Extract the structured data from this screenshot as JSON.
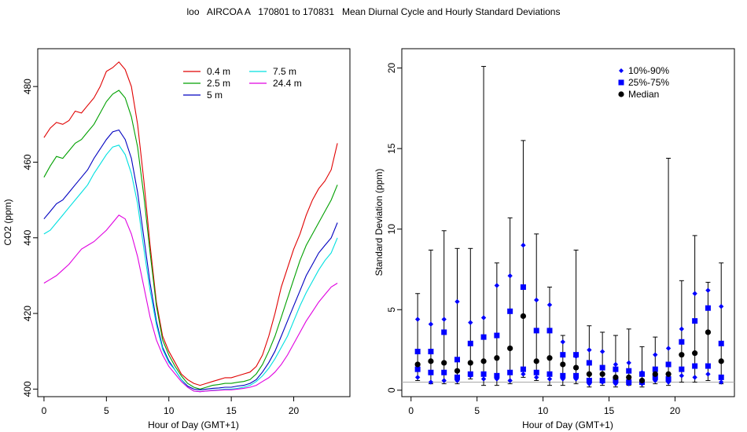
{
  "title": "loo   AIRCOA A   170801 to 170831   Mean Diurnal Cycle and Hourly Standard Deviations",
  "chart_data": [
    {
      "type": "line",
      "xlabel": "Hour of Day (GMT+1)",
      "ylabel": "CO2 (ppm)",
      "xlim": [
        -0.5,
        24.5
      ],
      "ylim": [
        398,
        490
      ],
      "xticks": [
        0,
        5,
        10,
        15,
        20
      ],
      "yticks": [
        400,
        420,
        440,
        460,
        480
      ],
      "grid": false,
      "legend_position": "top-center",
      "series": [
        {
          "name": "0.4 m",
          "color": "#e00000",
          "x": [
            0,
            0.5,
            1,
            1.5,
            2,
            2.5,
            3,
            3.5,
            4,
            4.5,
            5,
            5.5,
            6,
            6.5,
            7,
            7.5,
            8,
            8.5,
            9,
            9.5,
            10,
            10.5,
            11,
            11.5,
            12,
            12.5,
            13,
            13.5,
            14,
            14.5,
            15,
            15.5,
            16,
            16.5,
            17,
            17.5,
            18,
            18.5,
            19,
            19.5,
            20,
            20.5,
            21,
            21.5,
            22,
            22.5,
            23,
            23.5
          ],
          "y": [
            466.5,
            469,
            470.5,
            470,
            471,
            473.5,
            473,
            475,
            477,
            480,
            484,
            485,
            486.5,
            484.5,
            480,
            470,
            455,
            438,
            423,
            414,
            410,
            407,
            404,
            402.5,
            401.5,
            401,
            401.5,
            402,
            402.5,
            403,
            403,
            403.5,
            404,
            404.5,
            406,
            409,
            414,
            420,
            427,
            432,
            437,
            441,
            446,
            450,
            453,
            455,
            458,
            465
          ]
        },
        {
          "name": "2.5 m",
          "color": "#00a000",
          "x": [
            0,
            0.5,
            1,
            1.5,
            2,
            2.5,
            3,
            3.5,
            4,
            4.5,
            5,
            5.5,
            6,
            6.5,
            7,
            7.5,
            8,
            8.5,
            9,
            9.5,
            10,
            10.5,
            11,
            11.5,
            12,
            12.5,
            13,
            13.5,
            14,
            14.5,
            15,
            15.5,
            16,
            16.5,
            17,
            17.5,
            18,
            18.5,
            19,
            19.5,
            20,
            20.5,
            21,
            21.5,
            22,
            22.5,
            23,
            23.5
          ],
          "y": [
            456,
            459,
            461.5,
            461,
            463,
            465,
            466,
            468,
            470,
            473,
            476,
            478,
            479,
            477,
            472,
            464,
            451,
            436,
            422,
            413,
            409,
            406,
            403.5,
            401.5,
            400.5,
            400,
            400.5,
            401,
            401.2,
            401.5,
            401.5,
            401.8,
            402,
            402.5,
            404,
            406.5,
            410,
            414,
            419,
            424,
            429,
            434,
            438,
            441,
            444,
            447,
            450,
            454
          ]
        },
        {
          "name": "5 m",
          "color": "#0000c0",
          "x": [
            0,
            0.5,
            1,
            1.5,
            2,
            2.5,
            3,
            3.5,
            4,
            4.5,
            5,
            5.5,
            6,
            6.5,
            7,
            7.5,
            8,
            8.5,
            9,
            9.5,
            10,
            10.5,
            11,
            11.5,
            12,
            12.5,
            13,
            13.5,
            14,
            14.5,
            15,
            15.5,
            16,
            16.5,
            17,
            17.5,
            18,
            18.5,
            19,
            19.5,
            20,
            20.5,
            21,
            21.5,
            22,
            22.5,
            23,
            23.5
          ],
          "y": [
            445,
            447,
            449,
            450,
            452,
            454,
            456,
            458,
            461,
            463.5,
            466,
            468,
            468.5,
            466,
            461,
            452,
            440,
            428,
            418,
            411,
            407.5,
            405,
            402.5,
            400.8,
            400,
            399.8,
            400,
            400.2,
            400.3,
            400.5,
            400.5,
            400.8,
            401,
            401.5,
            402.5,
            404.5,
            407,
            410,
            414,
            418,
            422,
            426,
            430,
            433,
            436,
            438,
            440,
            444
          ]
        },
        {
          "name": "7.5 m",
          "color": "#00e0e0",
          "x": [
            0,
            0.5,
            1,
            1.5,
            2,
            2.5,
            3,
            3.5,
            4,
            4.5,
            5,
            5.5,
            6,
            6.5,
            7,
            7.5,
            8,
            8.5,
            9,
            9.5,
            10,
            10.5,
            11,
            11.5,
            12,
            12.5,
            13,
            13.5,
            14,
            14.5,
            15,
            15.5,
            16,
            16.5,
            17,
            17.5,
            18,
            18.5,
            19,
            19.5,
            20,
            20.5,
            21,
            21.5,
            22,
            22.5,
            23,
            23.5
          ],
          "y": [
            441,
            442,
            444,
            446,
            448,
            450,
            452,
            454,
            457,
            459.5,
            462,
            464,
            464.5,
            462,
            457,
            449,
            437,
            426,
            417,
            410.5,
            407,
            405,
            402.5,
            400.5,
            399.5,
            399.3,
            399.5,
            399.7,
            399.8,
            400,
            400,
            400.2,
            400.5,
            401,
            402,
            403.5,
            405.5,
            408,
            411,
            414,
            418,
            422,
            425.5,
            428.5,
            431.5,
            434,
            436,
            440
          ]
        },
        {
          "name": "24.4 m",
          "color": "#e000e0",
          "x": [
            0,
            0.5,
            1,
            1.5,
            2,
            2.5,
            3,
            3.5,
            4,
            4.5,
            5,
            5.5,
            6,
            6.5,
            7,
            7.5,
            8,
            8.5,
            9,
            9.5,
            10,
            10.5,
            11,
            11.5,
            12,
            12.5,
            13,
            13.5,
            14,
            14.5,
            15,
            15.5,
            16,
            16.5,
            17,
            17.5,
            18,
            18.5,
            19,
            19.5,
            20,
            20.5,
            21,
            21.5,
            22,
            22.5,
            23,
            23.5
          ],
          "y": [
            428,
            429,
            430,
            431.5,
            433,
            435,
            437,
            438,
            439,
            440.5,
            442,
            444,
            446,
            445,
            441,
            435,
            427,
            419,
            413,
            409,
            406,
            404,
            402,
            400.5,
            399.5,
            399.3,
            399.5,
            399.6,
            399.7,
            399.8,
            399.8,
            400,
            400.2,
            400.5,
            401,
            402,
            403,
            404.5,
            406.5,
            409,
            412,
            415,
            418,
            420.5,
            423,
            425,
            427,
            428
          ]
        }
      ]
    },
    {
      "type": "scatter",
      "xlabel": "Hour of Day (GMT+1)",
      "ylabel": "Standard Deviation (ppm)",
      "xlim": [
        -0.7,
        24.5
      ],
      "ylim": [
        -0.4,
        21.2
      ],
      "xticks": [
        0,
        5,
        10,
        15,
        20
      ],
      "yticks": [
        0,
        5,
        10,
        15,
        20
      ],
      "grid": false,
      "legend_position": "top-right",
      "reference_line": 0.5,
      "legend": [
        {
          "label": "10%-90%",
          "marker": "diamond",
          "color": "#0000ff"
        },
        {
          "label": "25%-75%",
          "marker": "square",
          "color": "#0000ff"
        },
        {
          "label": "Median",
          "marker": "circle",
          "color": "#000000"
        }
      ],
      "hours": [
        0.5,
        1.5,
        2.5,
        3.5,
        4.5,
        5.5,
        6.5,
        7.5,
        8.5,
        9.5,
        10.5,
        11.5,
        12.5,
        13.5,
        14.5,
        15.5,
        16.5,
        17.5,
        18.5,
        19.5,
        20.5,
        21.5,
        22.5,
        23.5
      ],
      "max": [
        6.0,
        8.7,
        9.9,
        8.8,
        8.8,
        20.1,
        7.9,
        10.7,
        15.5,
        9.7,
        6.4,
        3.4,
        8.7,
        4.0,
        3.6,
        3.4,
        3.8,
        2.7,
        3.3,
        14.4,
        6.8,
        9.6,
        6.7,
        7.9
      ],
      "p90": [
        4.4,
        4.1,
        4.4,
        5.5,
        4.2,
        4.5,
        6.5,
        7.1,
        9.0,
        5.6,
        5.3,
        3.0,
        2.1,
        2.5,
        2.4,
        1.6,
        1.7,
        1.1,
        2.2,
        2.6,
        3.8,
        6.0,
        6.2,
        5.2
      ],
      "p75": [
        2.4,
        2.4,
        3.6,
        1.9,
        2.9,
        3.3,
        3.4,
        4.9,
        6.4,
        3.7,
        3.7,
        2.2,
        2.2,
        1.7,
        1.4,
        1.3,
        1.2,
        1.0,
        1.3,
        1.6,
        3.0,
        4.3,
        5.1,
        2.9
      ],
      "median": [
        1.6,
        1.8,
        1.7,
        1.2,
        1.7,
        1.8,
        2.0,
        2.6,
        4.6,
        1.8,
        2.0,
        1.6,
        1.4,
        1.0,
        1.0,
        0.8,
        0.8,
        0.6,
        1.0,
        1.0,
        2.2,
        2.3,
        3.6,
        1.8
      ],
      "p25": [
        1.3,
        1.1,
        1.1,
        0.8,
        1.0,
        1.0,
        0.9,
        1.1,
        1.3,
        1.1,
        1.0,
        0.9,
        0.9,
        0.6,
        0.6,
        0.6,
        0.5,
        0.5,
        0.8,
        0.7,
        1.3,
        1.5,
        1.5,
        0.8
      ],
      "p10": [
        0.8,
        0.5,
        0.6,
        0.6,
        0.9,
        0.7,
        0.7,
        0.6,
        1.0,
        0.8,
        0.7,
        0.7,
        0.7,
        0.4,
        0.5,
        0.4,
        0.4,
        0.4,
        0.6,
        0.5,
        0.9,
        0.8,
        1.0,
        0.5
      ],
      "min": [
        0.6,
        0.4,
        0.4,
        0.4,
        0.7,
        0.3,
        0.3,
        0.4,
        0.8,
        0.6,
        0.3,
        0.3,
        0.4,
        0.2,
        0.3,
        0.2,
        0.3,
        0.2,
        0.4,
        0.3,
        0.5,
        0.5,
        0.6,
        0.4
      ]
    }
  ]
}
